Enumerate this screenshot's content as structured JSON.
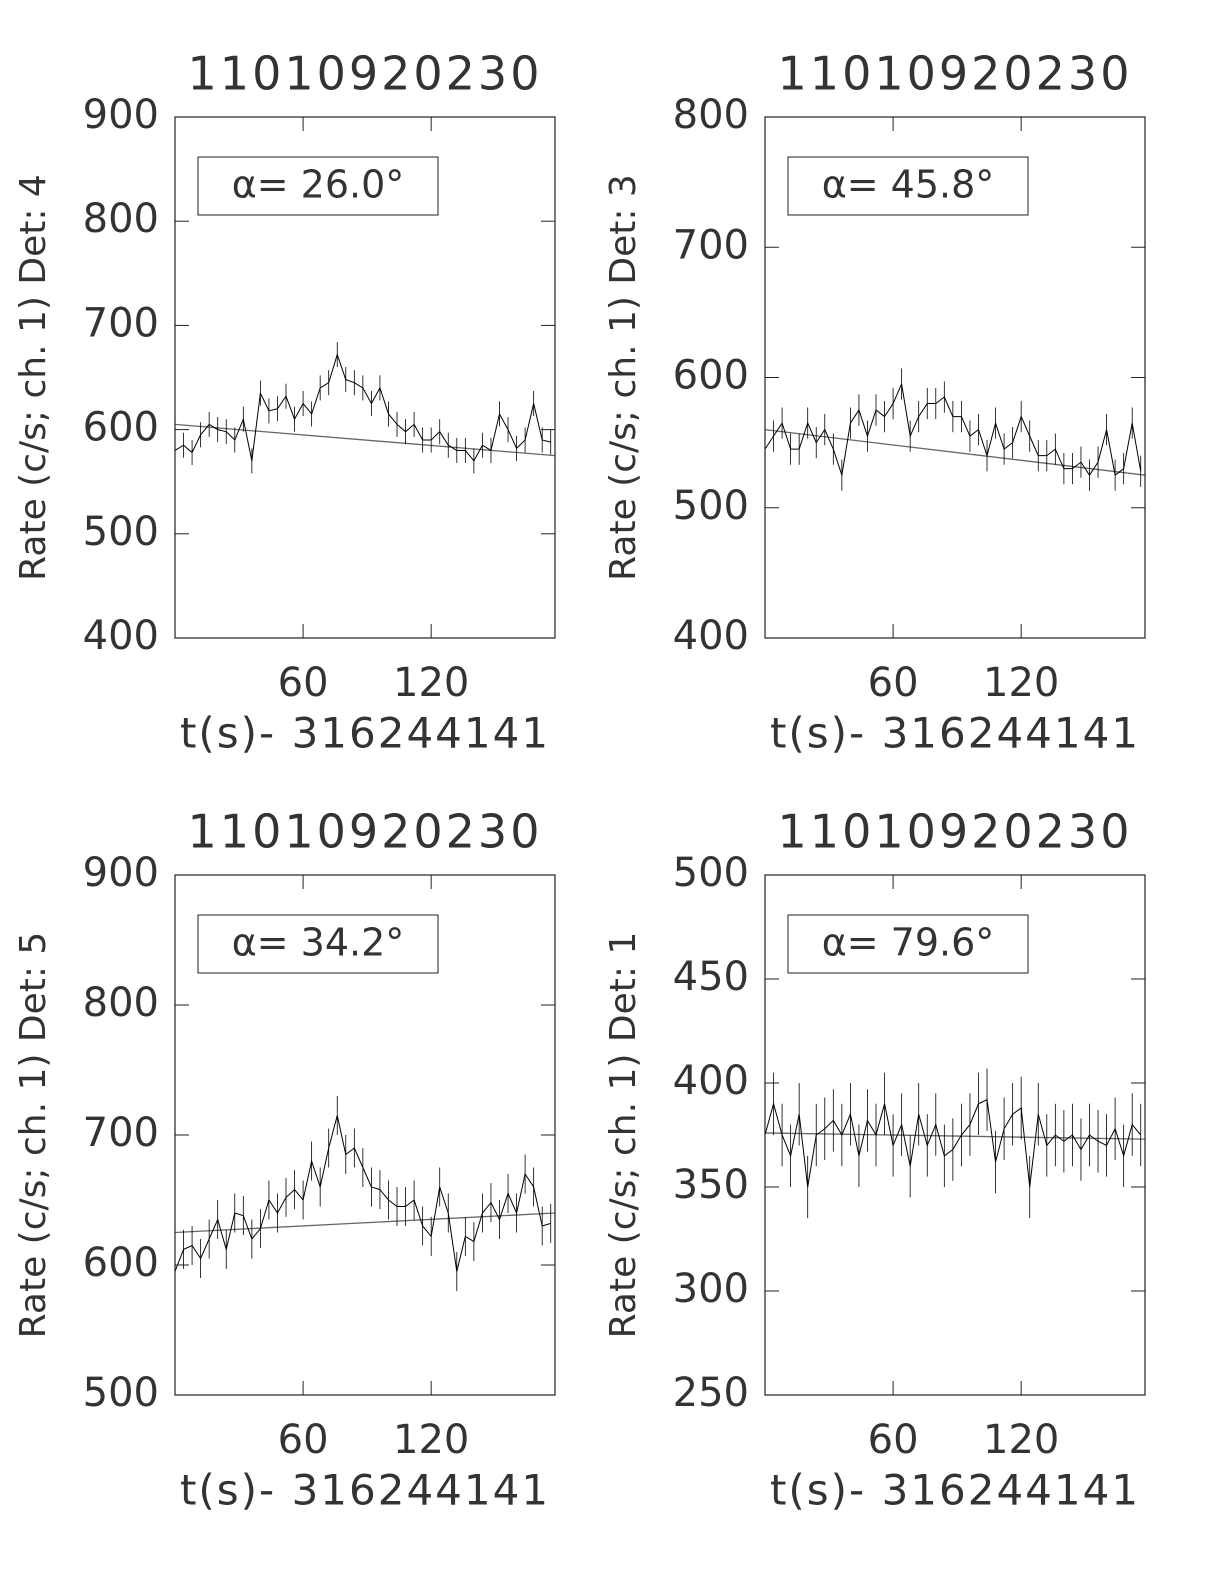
{
  "chart_data": [
    {
      "type": "line",
      "title": "11010920230",
      "ylabel": "Rate (c/s; ch. 1) Det: 4",
      "xlabel": "t(s)- 316244141",
      "annotation": "α= 26.0°",
      "x": [
        0,
        4,
        8,
        12,
        16,
        20,
        24,
        28,
        32,
        36,
        40,
        44,
        48,
        52,
        56,
        60,
        64,
        68,
        72,
        76,
        80,
        84,
        88,
        92,
        96,
        100,
        104,
        108,
        112,
        116,
        120,
        124,
        128,
        132,
        136,
        140,
        144,
        148,
        152,
        156,
        160,
        164,
        168,
        172,
        176
      ],
      "values": [
        580,
        585,
        578,
        595,
        605,
        600,
        598,
        590,
        610,
        570,
        635,
        618,
        620,
        632,
        610,
        625,
        615,
        640,
        645,
        672,
        648,
        645,
        640,
        625,
        640,
        615,
        605,
        598,
        605,
        590,
        590,
        598,
        585,
        580,
        580,
        570,
        585,
        580,
        615,
        600,
        582,
        590,
        625,
        590,
        588
      ],
      "error": 12,
      "color": "#000000",
      "fit": {
        "x": [
          0,
          178
        ],
        "values": [
          605,
          575
        ]
      },
      "fit_color": "#666666",
      "xlim": [
        0,
        178
      ],
      "ylim": [
        400,
        900
      ],
      "xticks": [
        60,
        120
      ],
      "yticks": [
        400,
        500,
        600,
        700,
        800,
        900
      ]
    },
    {
      "type": "line",
      "title": "11010920230",
      "ylabel": "Rate (c/s; ch. 1) Det: 3",
      "xlabel": "t(s)- 316244141",
      "annotation": "α= 45.8°",
      "x": [
        0,
        4,
        8,
        12,
        16,
        20,
        24,
        28,
        32,
        36,
        40,
        44,
        48,
        52,
        56,
        60,
        64,
        68,
        72,
        76,
        80,
        84,
        88,
        92,
        96,
        100,
        104,
        108,
        112,
        116,
        120,
        124,
        128,
        132,
        136,
        140,
        144,
        148,
        152,
        156,
        160,
        164,
        168,
        172,
        176
      ],
      "values": [
        545,
        555,
        565,
        545,
        545,
        565,
        550,
        560,
        545,
        525,
        565,
        575,
        555,
        575,
        570,
        580,
        595,
        555,
        570,
        580,
        580,
        585,
        570,
        570,
        555,
        560,
        540,
        565,
        545,
        550,
        570,
        555,
        540,
        540,
        545,
        530,
        530,
        535,
        525,
        535,
        560,
        525,
        530,
        565,
        528
      ],
      "error": 12,
      "color": "#000000",
      "fit": {
        "x": [
          0,
          178
        ],
        "values": [
          560,
          525
        ]
      },
      "fit_color": "#666666",
      "xlim": [
        0,
        178
      ],
      "ylim": [
        400,
        800
      ],
      "xticks": [
        60,
        120
      ],
      "yticks": [
        400,
        500,
        600,
        700,
        800
      ]
    },
    {
      "type": "line",
      "title": "11010920230",
      "ylabel": "Rate (c/s; ch. 1) Det: 5",
      "xlabel": "t(s)- 316244141",
      "annotation": "α= 34.2°",
      "x": [
        0,
        4,
        8,
        12,
        16,
        20,
        24,
        28,
        32,
        36,
        40,
        44,
        48,
        52,
        56,
        60,
        64,
        68,
        72,
        76,
        80,
        84,
        88,
        92,
        96,
        100,
        104,
        108,
        112,
        116,
        120,
        124,
        128,
        132,
        136,
        140,
        144,
        148,
        152,
        156,
        160,
        164,
        168,
        172,
        176
      ],
      "values": [
        595,
        612,
        615,
        605,
        620,
        635,
        612,
        640,
        638,
        620,
        628,
        650,
        640,
        652,
        658,
        650,
        680,
        660,
        690,
        715,
        685,
        690,
        675,
        660,
        658,
        650,
        645,
        645,
        650,
        630,
        622,
        660,
        640,
        595,
        622,
        618,
        640,
        648,
        635,
        655,
        640,
        670,
        660,
        630,
        632
      ],
      "error": 15,
      "color": "#000000",
      "fit": {
        "x": [
          0,
          178
        ],
        "values": [
          625,
          640
        ]
      },
      "fit_color": "#666666",
      "xlim": [
        0,
        178
      ],
      "ylim": [
        500,
        900
      ],
      "xticks": [
        60,
        120
      ],
      "yticks": [
        500,
        600,
        700,
        800,
        900
      ]
    },
    {
      "type": "line",
      "title": "11010920230",
      "ylabel": "Rate (c/s; ch. 1) Det: 1",
      "xlabel": "t(s)- 316244141",
      "annotation": "α= 79.6°",
      "x": [
        0,
        4,
        8,
        12,
        16,
        20,
        24,
        28,
        32,
        36,
        40,
        44,
        48,
        52,
        56,
        60,
        64,
        68,
        72,
        76,
        80,
        84,
        88,
        92,
        96,
        100,
        104,
        108,
        112,
        116,
        120,
        124,
        128,
        132,
        136,
        140,
        144,
        148,
        152,
        156,
        160,
        164,
        168,
        172,
        176
      ],
      "values": [
        375,
        390,
        375,
        365,
        385,
        350,
        375,
        378,
        382,
        375,
        385,
        365,
        382,
        375,
        390,
        370,
        380,
        360,
        385,
        370,
        380,
        365,
        368,
        375,
        380,
        390,
        392,
        362,
        378,
        385,
        388,
        350,
        385,
        370,
        375,
        372,
        375,
        368,
        375,
        372,
        370,
        378,
        365,
        380,
        375
      ],
      "error": 15,
      "color": "#000000",
      "fit": {
        "x": [
          0,
          178
        ],
        "values": [
          376,
          373
        ]
      },
      "fit_color": "#666666",
      "xlim": [
        0,
        178
      ],
      "ylim": [
        250,
        500
      ],
      "xticks": [
        60,
        120
      ],
      "yticks": [
        250,
        300,
        350,
        400,
        450,
        500
      ]
    }
  ]
}
